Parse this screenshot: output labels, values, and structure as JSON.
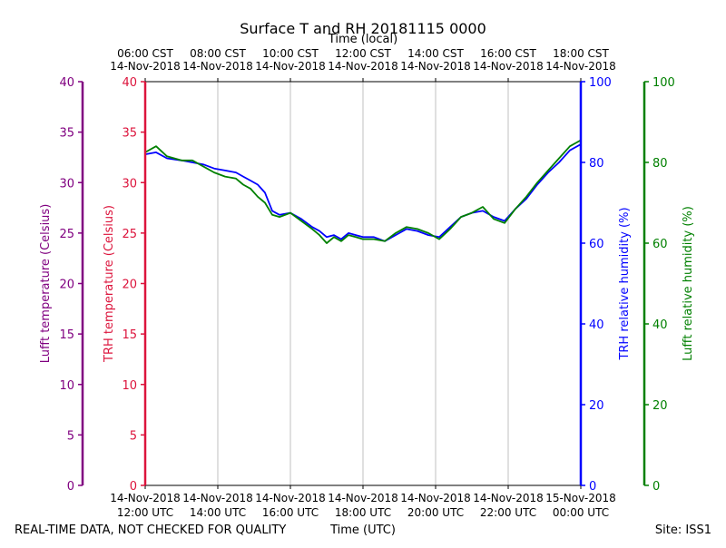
{
  "chart_data": {
    "type": "line",
    "title": "Surface T and RH 20181115 0000",
    "top_axis_label": "Time (local)",
    "bottom_axis_label": "Time (UTC)",
    "footer_left": "REAL-TIME DATA, NOT CHECKED FOR QUALITY",
    "footer_right": "Site: ISS1",
    "x_range_hours_utc": [
      12,
      24
    ],
    "x_ticks": [
      {
        "hour": 12,
        "utc_date": "14-Nov-2018",
        "utc_time": "12:00 UTC",
        "local_time": "06:00 CST",
        "local_date": "14-Nov-2018"
      },
      {
        "hour": 14,
        "utc_date": "14-Nov-2018",
        "utc_time": "14:00 UTC",
        "local_time": "08:00 CST",
        "local_date": "14-Nov-2018"
      },
      {
        "hour": 16,
        "utc_date": "14-Nov-2018",
        "utc_time": "16:00 UTC",
        "local_time": "10:00 CST",
        "local_date": "14-Nov-2018"
      },
      {
        "hour": 18,
        "utc_date": "14-Nov-2018",
        "utc_time": "18:00 UTC",
        "local_time": "12:00 CST",
        "local_date": "14-Nov-2018"
      },
      {
        "hour": 20,
        "utc_date": "14-Nov-2018",
        "utc_time": "20:00 UTC",
        "local_time": "14:00 CST",
        "local_date": "14-Nov-2018"
      },
      {
        "hour": 22,
        "utc_date": "14-Nov-2018",
        "utc_time": "22:00 UTC",
        "local_time": "16:00 CST",
        "local_date": "14-Nov-2018"
      },
      {
        "hour": 24,
        "utc_date": "15-Nov-2018",
        "utc_time": "00:00 UTC",
        "local_time": "18:00 CST",
        "local_date": "14-Nov-2018"
      }
    ],
    "y_axes": [
      {
        "id": "lufft_t",
        "label": "Lufft temperature (Celsius)",
        "color": "#800080",
        "ylim": [
          0,
          40
        ],
        "ticks": [
          0,
          5,
          10,
          15,
          20,
          25,
          30,
          35,
          40
        ]
      },
      {
        "id": "trh_t",
        "label": "TRH temperature (Celsius)",
        "color": "#dc143c",
        "ylim": [
          0,
          40
        ],
        "ticks": [
          0,
          5,
          10,
          15,
          20,
          25,
          30,
          35,
          40
        ]
      },
      {
        "id": "trh_rh",
        "label": "TRH relative humidity (%)",
        "color": "#0000ff",
        "ylim": [
          0,
          100
        ],
        "ticks": [
          0,
          20,
          40,
          60,
          80,
          100
        ]
      },
      {
        "id": "lufft_rh",
        "label": "Lufft relative humidity (%)",
        "color": "#008000",
        "ylim": [
          0,
          100
        ],
        "ticks": [
          0,
          20,
          40,
          60,
          80,
          100
        ]
      }
    ],
    "grid": "vertical",
    "series": [
      {
        "name": "TRH relative humidity",
        "axis": "trh_rh",
        "color": "#0000ff",
        "x": [
          12.0,
          12.3,
          12.6,
          13.0,
          13.3,
          13.6,
          13.9,
          14.2,
          14.5,
          14.7,
          14.9,
          15.1,
          15.3,
          15.5,
          15.7,
          16.0,
          16.3,
          16.6,
          16.8,
          17.0,
          17.2,
          17.4,
          17.6,
          17.8,
          18.0,
          18.3,
          18.6,
          18.9,
          19.2,
          19.5,
          19.8,
          20.1,
          20.4,
          20.7,
          21.0,
          21.3,
          21.6,
          21.9,
          22.2,
          22.5,
          22.8,
          23.1,
          23.4,
          23.7,
          24.0
        ],
        "values": [
          82,
          82.5,
          81,
          80.5,
          80,
          79.5,
          78.5,
          78,
          77.5,
          76.5,
          75.5,
          74.5,
          72.5,
          68,
          67,
          67.5,
          66,
          64,
          63,
          61.5,
          62,
          61,
          62.5,
          62,
          61.5,
          61.5,
          60.5,
          62,
          63.5,
          63,
          62,
          61.5,
          64,
          66.5,
          67.5,
          68,
          66.5,
          65.5,
          68.5,
          71,
          74.5,
          77.5,
          80,
          83,
          84.5
        ]
      },
      {
        "name": "Lufft relative humidity",
        "axis": "lufft_rh",
        "color": "#008000",
        "x": [
          12.0,
          12.3,
          12.6,
          13.0,
          13.3,
          13.6,
          13.9,
          14.2,
          14.5,
          14.7,
          14.9,
          15.1,
          15.3,
          15.5,
          15.7,
          16.0,
          16.3,
          16.6,
          16.8,
          17.0,
          17.2,
          17.4,
          17.6,
          17.8,
          18.0,
          18.3,
          18.6,
          18.9,
          19.2,
          19.5,
          19.8,
          20.1,
          20.4,
          20.7,
          21.0,
          21.3,
          21.6,
          21.9,
          22.2,
          22.5,
          22.8,
          23.1,
          23.4,
          23.7,
          24.0
        ],
        "values": [
          82.5,
          84,
          81.5,
          80.5,
          80.5,
          79,
          77.5,
          76.5,
          76,
          74.5,
          73.5,
          71.5,
          70,
          67,
          66.5,
          67.5,
          65.5,
          63.5,
          62,
          60,
          61.5,
          60.5,
          62,
          61.5,
          61,
          61,
          60.5,
          62.5,
          64,
          63.5,
          62.5,
          61,
          63.5,
          66.5,
          67.5,
          69,
          66,
          65,
          68.5,
          71.5,
          75,
          78,
          81,
          84,
          85.5
        ]
      }
    ]
  }
}
